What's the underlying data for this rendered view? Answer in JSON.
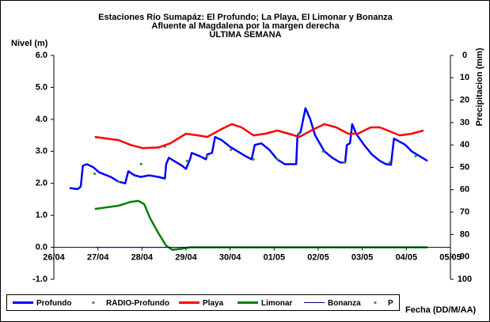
{
  "chart_data": {
    "type": "line",
    "title": "Estaciones Río Sumapáz: El Profundo; La Playa, El Limonar y Bonanza",
    "subtitle": "Afluente al Magdalena por la margen derecha",
    "subtitle2": "ULTIMA SEMANA",
    "ylabel": "Nivel (m)",
    "y2label": "Precipitacion (mm)",
    "xlabel": "Fecha (DD/M/AA)",
    "xlim": [
      0,
      9
    ],
    "xticks": [
      {
        "value": 0,
        "label": "26/04"
      },
      {
        "value": 1,
        "label": "27/04"
      },
      {
        "value": 2,
        "label": "28/04"
      },
      {
        "value": 3,
        "label": "29/04"
      },
      {
        "value": 4,
        "label": "30/04"
      },
      {
        "value": 5,
        "label": "01/05"
      },
      {
        "value": 6,
        "label": "02/05"
      },
      {
        "value": 7,
        "label": "03/05"
      },
      {
        "value": 8,
        "label": "04/05"
      },
      {
        "value": 9,
        "label": "05/05"
      }
    ],
    "ylim": [
      -1,
      6
    ],
    "yticks": [
      {
        "value": -1,
        "label": "-1.0"
      },
      {
        "value": 0,
        "label": "0.0"
      },
      {
        "value": 1,
        "label": "1.0"
      },
      {
        "value": 2,
        "label": "2.0"
      },
      {
        "value": 3,
        "label": "3.0"
      },
      {
        "value": 4,
        "label": "4.0"
      },
      {
        "value": 5,
        "label": "5.0"
      },
      {
        "value": 6,
        "label": "6.0"
      }
    ],
    "y2lim": [
      0,
      100
    ],
    "y2ticks": [
      0,
      10,
      20,
      30,
      40,
      50,
      60,
      70,
      80,
      90,
      100
    ],
    "y2_inverted": true,
    "series": [
      {
        "name": "Profundo",
        "color": "#0000ff",
        "style": "line",
        "x": [
          0.36,
          0.54,
          0.61,
          0.66,
          0.75,
          0.9,
          1.02,
          1.29,
          1.47,
          1.62,
          1.69,
          1.83,
          1.98,
          2.16,
          2.37,
          2.52,
          2.55,
          2.61,
          2.73,
          2.91,
          3.0,
          3.09,
          3.13,
          3.31,
          3.45,
          3.48,
          3.59,
          3.66,
          3.81,
          3.99,
          4.17,
          4.35,
          4.49,
          4.56,
          4.71,
          4.89,
          5.07,
          5.24,
          5.5,
          5.53,
          5.6,
          5.71,
          5.82,
          5.93,
          6.14,
          6.32,
          6.5,
          6.61,
          6.65,
          6.72,
          6.77,
          6.86,
          7.04,
          7.22,
          7.4,
          7.54,
          7.65,
          7.72,
          7.85,
          7.98,
          8.12,
          8.3,
          8.48
        ],
        "values": [
          1.85,
          1.82,
          1.9,
          2.55,
          2.6,
          2.5,
          2.35,
          2.2,
          2.05,
          2.0,
          2.38,
          2.25,
          2.2,
          2.25,
          2.2,
          2.15,
          2.6,
          2.8,
          2.7,
          2.55,
          2.45,
          2.75,
          2.95,
          2.85,
          2.75,
          2.9,
          2.95,
          3.45,
          3.35,
          3.15,
          3.0,
          2.85,
          2.75,
          3.2,
          3.25,
          3.05,
          2.75,
          2.6,
          2.6,
          3.5,
          3.6,
          4.35,
          4.0,
          3.5,
          3.0,
          2.8,
          2.65,
          2.65,
          3.2,
          3.25,
          3.85,
          3.55,
          3.2,
          2.9,
          2.7,
          2.6,
          2.58,
          3.4,
          3.3,
          3.2,
          3.0,
          2.85,
          2.7
        ]
      },
      {
        "name": "RADIO-Profundo",
        "color": "#339933",
        "style": "dots",
        "x": [
          0.93,
          1.47,
          1.98,
          2.52,
          3.02,
          3.48,
          4.02,
          4.53,
          5.07,
          5.55,
          6.11,
          6.59,
          7.62,
          8.21
        ],
        "values": [
          2.3,
          2.05,
          2.6,
          3.15,
          2.7,
          2.85,
          3.05,
          2.75,
          2.75,
          3.55,
          3.0,
          2.65,
          2.65,
          2.85
        ]
      },
      {
        "name": "Playa",
        "color": "#ff0000",
        "style": "line",
        "x": [
          0.93,
          1.47,
          1.74,
          2.01,
          2.37,
          2.64,
          3.0,
          3.27,
          3.48,
          3.81,
          4.04,
          4.26,
          4.53,
          4.8,
          5.07,
          5.33,
          5.57,
          5.84,
          6.14,
          6.41,
          6.68,
          6.9,
          7.19,
          7.4,
          7.67,
          7.85,
          8.12,
          8.39
        ],
        "values": [
          3.45,
          3.35,
          3.2,
          3.1,
          3.12,
          3.25,
          3.55,
          3.5,
          3.45,
          3.7,
          3.85,
          3.75,
          3.5,
          3.55,
          3.65,
          3.55,
          3.45,
          3.65,
          3.85,
          3.75,
          3.55,
          3.55,
          3.75,
          3.75,
          3.6,
          3.5,
          3.55,
          3.65
        ]
      },
      {
        "name": "Limonar",
        "color": "#008000",
        "style": "line",
        "x": [
          0.93,
          1.47,
          1.74,
          1.92,
          2.05,
          2.19,
          2.37,
          2.55,
          2.69,
          2.87,
          3.09,
          8.48
        ],
        "values": [
          1.2,
          1.3,
          1.42,
          1.45,
          1.35,
          0.9,
          0.45,
          0.05,
          -0.08,
          -0.05,
          0.0,
          0.0
        ]
      },
      {
        "name": "Bonanza",
        "color": "#000080",
        "style": "thin",
        "x": [
          0.93,
          8.48
        ],
        "values": [
          0,
          0
        ]
      },
      {
        "name": "P",
        "color": "#339933",
        "style": "dots",
        "axis": "y2",
        "x": [],
        "values": []
      }
    ]
  }
}
